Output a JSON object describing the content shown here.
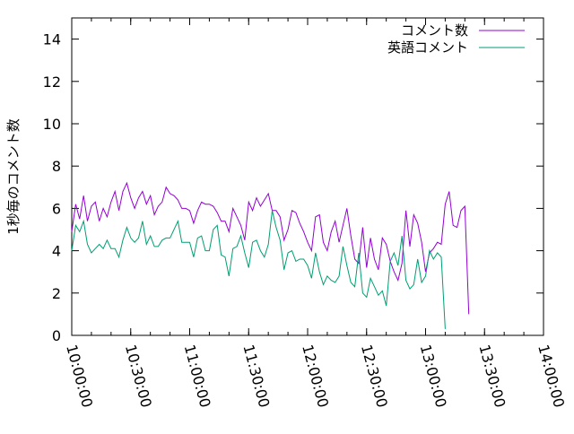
{
  "chart_data": {
    "type": "line",
    "title": "",
    "xlabel": "",
    "ylabel": "1秒毎のコメント数",
    "ylim": [
      0,
      15
    ],
    "yticks": [
      0,
      2,
      4,
      6,
      8,
      10,
      12,
      14
    ],
    "xlim": [
      "10:00:00",
      "14:00:00"
    ],
    "xticks": [
      "10:00:00",
      "10:30:00",
      "11:00:00",
      "11:30:00",
      "12:00:00",
      "12:30:00",
      "13:00:00",
      "13:30:00",
      "14:00:00"
    ],
    "grid": false,
    "legend": "top-right",
    "series": [
      {
        "name": "コメント数",
        "color": "#9400d3",
        "points": [
          [
            "10:00:00",
            4.9
          ],
          [
            "10:02:00",
            6.2
          ],
          [
            "10:04:00",
            5.5
          ],
          [
            "10:06:00",
            6.6
          ],
          [
            "10:08:00",
            5.4
          ],
          [
            "10:10:00",
            6.1
          ],
          [
            "10:12:00",
            6.3
          ],
          [
            "10:14:00",
            5.4
          ],
          [
            "10:16:00",
            6.0
          ],
          [
            "10:18:00",
            5.6
          ],
          [
            "10:20:00",
            6.3
          ],
          [
            "10:22:00",
            6.8
          ],
          [
            "10:24:00",
            5.9
          ],
          [
            "10:26:00",
            6.8
          ],
          [
            "10:28:00",
            7.2
          ],
          [
            "10:30:00",
            6.5
          ],
          [
            "10:32:00",
            6.0
          ],
          [
            "10:34:00",
            6.5
          ],
          [
            "10:36:00",
            6.8
          ],
          [
            "10:38:00",
            6.2
          ],
          [
            "10:40:00",
            6.6
          ],
          [
            "10:42:00",
            5.7
          ],
          [
            "10:44:00",
            6.1
          ],
          [
            "10:46:00",
            6.3
          ],
          [
            "10:48:00",
            7.0
          ],
          [
            "10:50:00",
            6.7
          ],
          [
            "10:52:00",
            6.6
          ],
          [
            "10:54:00",
            6.4
          ],
          [
            "10:56:00",
            6.0
          ],
          [
            "10:58:00",
            6.0
          ],
          [
            "11:00:00",
            5.9
          ],
          [
            "11:02:00",
            5.3
          ],
          [
            "11:04:00",
            5.9
          ],
          [
            "11:06:00",
            6.3
          ],
          [
            "11:08:00",
            6.2
          ],
          [
            "11:10:00",
            6.2
          ],
          [
            "11:12:00",
            6.1
          ],
          [
            "11:14:00",
            5.8
          ],
          [
            "11:16:00",
            5.4
          ],
          [
            "11:18:00",
            5.4
          ],
          [
            "11:20:00",
            4.9
          ],
          [
            "11:22:00",
            6.0
          ],
          [
            "11:24:00",
            5.6
          ],
          [
            "11:26:00",
            5.2
          ],
          [
            "11:28:00",
            4.5
          ],
          [
            "11:30:00",
            6.3
          ],
          [
            "11:32:00",
            5.9
          ],
          [
            "11:34:00",
            6.5
          ],
          [
            "11:36:00",
            6.1
          ],
          [
            "11:38:00",
            6.4
          ],
          [
            "11:40:00",
            6.7
          ],
          [
            "11:42:00",
            5.9
          ],
          [
            "11:44:00",
            5.9
          ],
          [
            "11:46:00",
            5.6
          ],
          [
            "11:48:00",
            4.5
          ],
          [
            "11:50:00",
            5.0
          ],
          [
            "11:52:00",
            5.9
          ],
          [
            "11:54:00",
            5.8
          ],
          [
            "11:56:00",
            5.3
          ],
          [
            "11:58:00",
            4.9
          ],
          [
            "12:00:00",
            4.4
          ],
          [
            "12:02:00",
            4.0
          ],
          [
            "12:04:00",
            5.6
          ],
          [
            "12:06:00",
            5.7
          ],
          [
            "12:08:00",
            4.4
          ],
          [
            "12:10:00",
            4.0
          ],
          [
            "12:12:00",
            4.9
          ],
          [
            "12:14:00",
            5.4
          ],
          [
            "12:16:00",
            4.4
          ],
          [
            "12:18:00",
            5.2
          ],
          [
            "12:20:00",
            6.0
          ],
          [
            "12:22:00",
            4.7
          ],
          [
            "12:24:00",
            3.6
          ],
          [
            "12:26:00",
            3.4
          ],
          [
            "12:28:00",
            5.1
          ],
          [
            "12:30:00",
            3.2
          ],
          [
            "12:32:00",
            4.6
          ],
          [
            "12:34:00",
            3.6
          ],
          [
            "12:36:00",
            3.1
          ],
          [
            "12:38:00",
            4.6
          ],
          [
            "12:40:00",
            4.3
          ],
          [
            "12:42:00",
            3.5
          ],
          [
            "12:44:00",
            3.0
          ],
          [
            "12:46:00",
            2.6
          ],
          [
            "12:48:00",
            3.4
          ],
          [
            "12:50:00",
            5.9
          ],
          [
            "12:52:00",
            4.2
          ],
          [
            "12:54:00",
            5.7
          ],
          [
            "12:56:00",
            5.3
          ],
          [
            "12:58:00",
            4.4
          ],
          [
            "13:00:00",
            3.0
          ],
          [
            "13:02:00",
            3.9
          ],
          [
            "13:04:00",
            4.1
          ],
          [
            "13:06:00",
            4.4
          ],
          [
            "13:08:00",
            4.3
          ],
          [
            "13:10:00",
            6.2
          ],
          [
            "13:12:00",
            6.8
          ],
          [
            "13:14:00",
            5.2
          ],
          [
            "13:16:00",
            5.1
          ],
          [
            "13:18:00",
            5.9
          ],
          [
            "13:20:00",
            6.1
          ],
          [
            "13:22:00",
            1.0
          ]
        ]
      },
      {
        "name": "英語コメント",
        "color": "#009e73",
        "points": [
          [
            "10:00:00",
            4.0
          ],
          [
            "10:02:00",
            5.2
          ],
          [
            "10:04:00",
            4.9
          ],
          [
            "10:06:00",
            5.4
          ],
          [
            "10:08:00",
            4.3
          ],
          [
            "10:10:00",
            3.9
          ],
          [
            "10:12:00",
            4.1
          ],
          [
            "10:14:00",
            4.3
          ],
          [
            "10:16:00",
            4.1
          ],
          [
            "10:18:00",
            4.5
          ],
          [
            "10:20:00",
            4.1
          ],
          [
            "10:22:00",
            4.1
          ],
          [
            "10:24:00",
            3.7
          ],
          [
            "10:26:00",
            4.5
          ],
          [
            "10:28:00",
            5.1
          ],
          [
            "10:30:00",
            4.6
          ],
          [
            "10:32:00",
            4.4
          ],
          [
            "10:34:00",
            4.6
          ],
          [
            "10:36:00",
            5.4
          ],
          [
            "10:38:00",
            4.3
          ],
          [
            "10:40:00",
            4.7
          ],
          [
            "10:42:00",
            4.2
          ],
          [
            "10:44:00",
            4.2
          ],
          [
            "10:46:00",
            4.5
          ],
          [
            "10:48:00",
            4.6
          ],
          [
            "10:50:00",
            4.6
          ],
          [
            "10:52:00",
            5.0
          ],
          [
            "10:54:00",
            5.4
          ],
          [
            "10:56:00",
            4.4
          ],
          [
            "10:58:00",
            4.4
          ],
          [
            "11:00:00",
            4.4
          ],
          [
            "11:02:00",
            3.7
          ],
          [
            "11:04:00",
            4.6
          ],
          [
            "11:06:00",
            4.7
          ],
          [
            "11:08:00",
            4.0
          ],
          [
            "11:10:00",
            4.0
          ],
          [
            "11:12:00",
            5.0
          ],
          [
            "11:14:00",
            5.2
          ],
          [
            "11:16:00",
            3.8
          ],
          [
            "11:18:00",
            3.7
          ],
          [
            "11:20:00",
            2.8
          ],
          [
            "11:22:00",
            4.1
          ],
          [
            "11:24:00",
            4.2
          ],
          [
            "11:26:00",
            4.7
          ],
          [
            "11:28:00",
            3.9
          ],
          [
            "11:30:00",
            3.2
          ],
          [
            "11:32:00",
            4.4
          ],
          [
            "11:34:00",
            4.5
          ],
          [
            "11:36:00",
            4.0
          ],
          [
            "11:38:00",
            3.7
          ],
          [
            "11:40:00",
            4.3
          ],
          [
            "11:42:00",
            5.9
          ],
          [
            "11:44:00",
            5.1
          ],
          [
            "11:46:00",
            4.5
          ],
          [
            "11:48:00",
            3.1
          ],
          [
            "11:50:00",
            3.9
          ],
          [
            "11:52:00",
            4.0
          ],
          [
            "11:54:00",
            3.5
          ],
          [
            "11:56:00",
            3.6
          ],
          [
            "11:58:00",
            3.6
          ],
          [
            "12:00:00",
            3.3
          ],
          [
            "12:02:00",
            2.7
          ],
          [
            "12:04:00",
            3.9
          ],
          [
            "12:06:00",
            3.0
          ],
          [
            "12:08:00",
            2.4
          ],
          [
            "12:10:00",
            2.8
          ],
          [
            "12:12:00",
            2.6
          ],
          [
            "12:14:00",
            2.5
          ],
          [
            "12:16:00",
            2.8
          ],
          [
            "12:18:00",
            4.2
          ],
          [
            "12:20:00",
            3.3
          ],
          [
            "12:22:00",
            2.5
          ],
          [
            "12:24:00",
            2.3
          ],
          [
            "12:26:00",
            3.9
          ],
          [
            "12:28:00",
            2.0
          ],
          [
            "12:30:00",
            1.8
          ],
          [
            "12:32:00",
            2.7
          ],
          [
            "12:34:00",
            2.3
          ],
          [
            "12:36:00",
            1.9
          ],
          [
            "12:38:00",
            2.1
          ],
          [
            "12:40:00",
            1.4
          ],
          [
            "12:42:00",
            3.5
          ],
          [
            "12:44:00",
            3.9
          ],
          [
            "12:46:00",
            3.3
          ],
          [
            "12:48:00",
            4.7
          ],
          [
            "12:50:00",
            2.6
          ],
          [
            "12:52:00",
            2.2
          ],
          [
            "12:54:00",
            2.4
          ],
          [
            "12:56:00",
            3.6
          ],
          [
            "12:58:00",
            2.5
          ],
          [
            "13:00:00",
            2.8
          ],
          [
            "13:02:00",
            4.0
          ],
          [
            "13:04:00",
            3.6
          ],
          [
            "13:06:00",
            3.9
          ],
          [
            "13:08:00",
            3.7
          ],
          [
            "13:10:00",
            0.3
          ]
        ]
      }
    ]
  }
}
